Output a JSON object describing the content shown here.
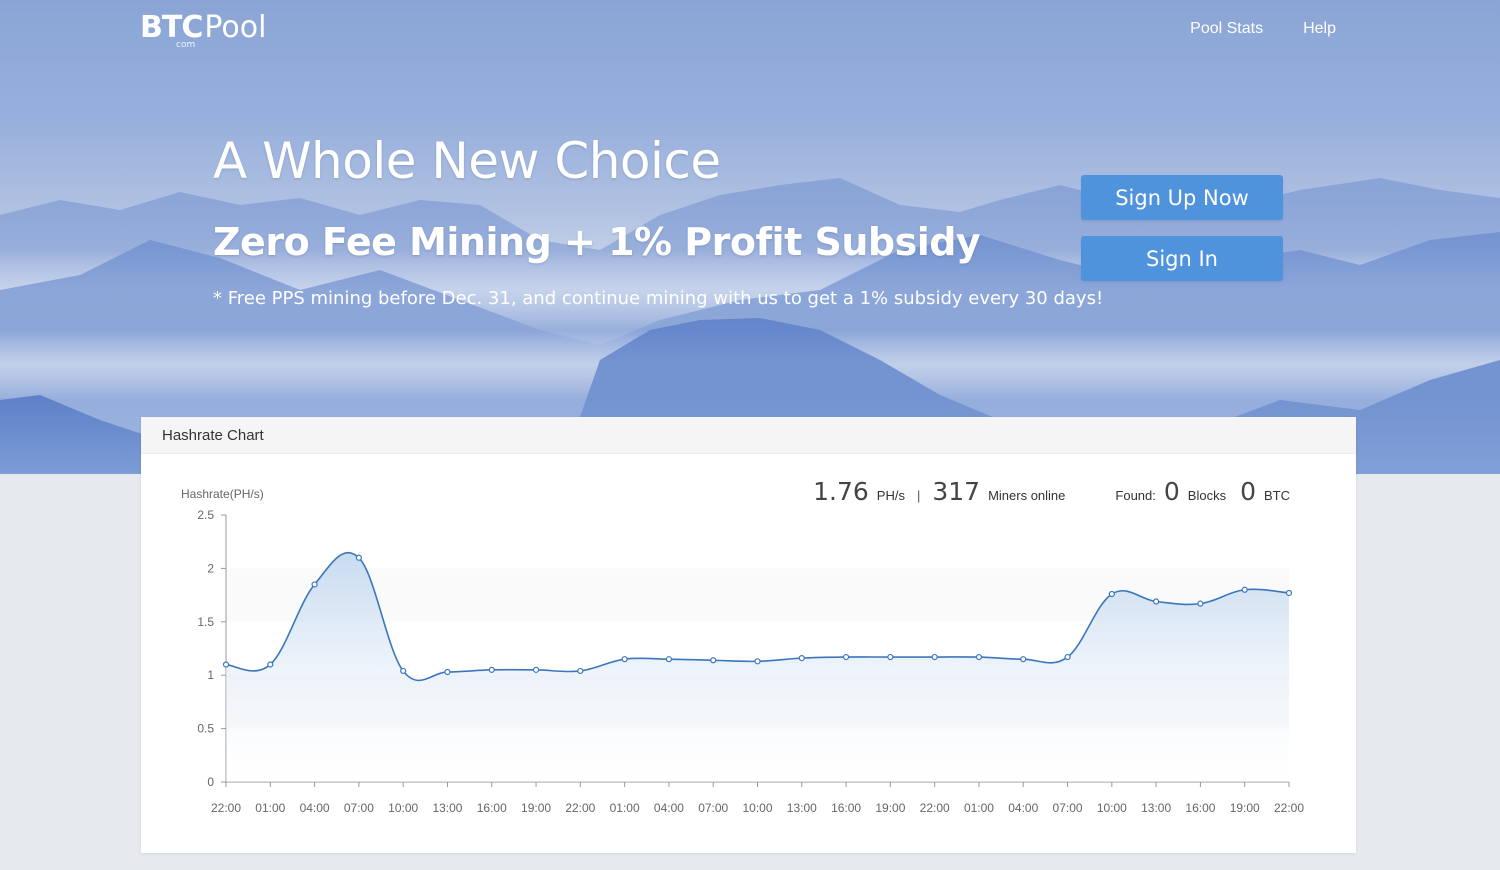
{
  "logo": {
    "brand": "BTC",
    "suffix": "Pool",
    "tld": "com"
  },
  "nav": {
    "pool_stats": "Pool Stats",
    "help": "Help"
  },
  "hero": {
    "headline": "A Whole New Choice",
    "subline": "Zero Fee Mining + 1% Profit Subsidy",
    "note": "* Free PPS mining before Dec. 31, and continue mining with us to get a 1% subsidy every 30 days!",
    "signup_label": "Sign Up Now",
    "signin_label": "Sign In"
  },
  "card": {
    "title": "Hashrate Chart",
    "hashrate_value": "1.76",
    "hashrate_unit": "PH/s",
    "separator": "|",
    "miners_value": "317",
    "miners_label": "Miners online",
    "found_label": "Found:",
    "blocks_value": "0",
    "blocks_label": "Blocks",
    "btc_value": "0",
    "btc_label": "BTC"
  },
  "colors": {
    "accent": "#4f93dd",
    "line": "#3b76bd",
    "fill_top": "#c9dcf0"
  },
  "chart_data": {
    "type": "area",
    "ylabel": "Hashrate(PH/s)",
    "ylim": [
      0,
      2.5
    ],
    "yticks": [
      0,
      0.5,
      1,
      1.5,
      2,
      2.5
    ],
    "x_labels": [
      "22:00",
      "01:00",
      "04:00",
      "07:00",
      "10:00",
      "13:00",
      "16:00",
      "19:00",
      "22:00",
      "01:00",
      "04:00",
      "07:00",
      "10:00",
      "13:00",
      "16:00",
      "19:00",
      "22:00",
      "01:00",
      "04:00",
      "07:00",
      "10:00",
      "13:00",
      "16:00",
      "19:00",
      "22:00"
    ],
    "values": [
      1.1,
      1.1,
      1.85,
      2.1,
      1.04,
      1.03,
      1.05,
      1.05,
      1.04,
      1.15,
      1.15,
      1.14,
      1.13,
      1.16,
      1.17,
      1.17,
      1.17,
      1.17,
      1.15,
      1.17,
      1.76,
      1.69,
      1.67,
      1.8,
      1.77
    ],
    "grid": "horizontal bands",
    "legend": "none"
  }
}
